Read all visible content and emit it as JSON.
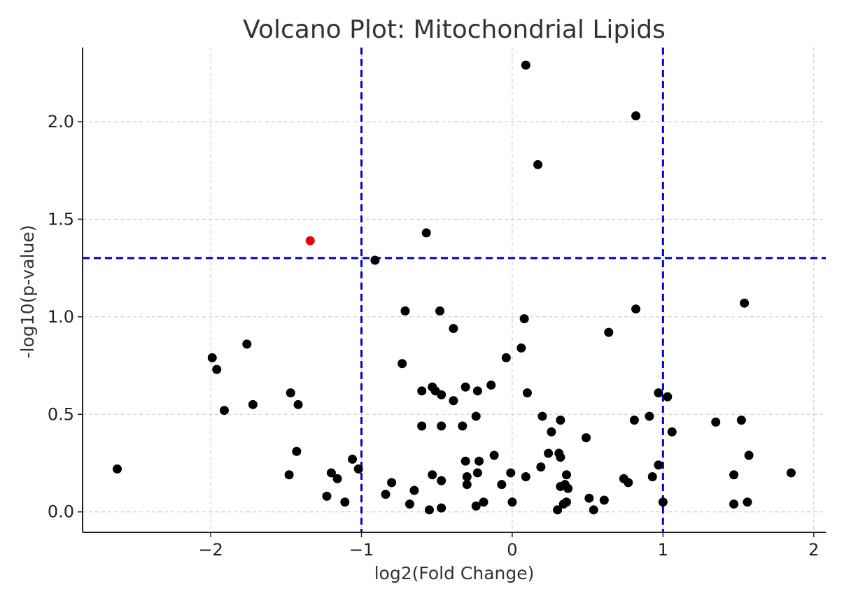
{
  "chart_data": {
    "type": "scatter",
    "title": "Volcano Plot: Mitochondrial Lipids",
    "xlabel": "log2(Fold Change)",
    "ylabel": "-log10(p-value)",
    "xlim": [
      -2.85,
      2.08
    ],
    "ylim": [
      -0.105,
      2.38
    ],
    "xticks": [
      -2,
      -1,
      0,
      1,
      2
    ],
    "xtick_labels": [
      "−2",
      "−1",
      "0",
      "1",
      "2"
    ],
    "yticks": [
      0.0,
      0.5,
      1.0,
      1.5,
      2.0
    ],
    "ytick_labels": [
      "0.0",
      "0.5",
      "1.0",
      "1.5",
      "2.0"
    ],
    "grid": true,
    "thresholds": {
      "fold_change": [
        -1,
        1
      ],
      "neg_log10_p": 1.301,
      "color": "#0000dd"
    },
    "colors": {
      "normal": "#000000",
      "highlight": "#ee0000"
    },
    "points": [
      {
        "x": -1.34,
        "y": 1.39,
        "highlight": true
      },
      {
        "x": 0.09,
        "y": 2.29
      },
      {
        "x": 0.82,
        "y": 2.03
      },
      {
        "x": 0.17,
        "y": 1.78
      },
      {
        "x": -0.57,
        "y": 1.43
      },
      {
        "x": -0.91,
        "y": 1.29
      },
      {
        "x": 1.54,
        "y": 1.07
      },
      {
        "x": -0.71,
        "y": 1.03
      },
      {
        "x": -0.48,
        "y": 1.03
      },
      {
        "x": 0.82,
        "y": 1.04
      },
      {
        "x": 0.08,
        "y": 0.99
      },
      {
        "x": -0.39,
        "y": 0.94
      },
      {
        "x": 0.64,
        "y": 0.92
      },
      {
        "x": -1.76,
        "y": 0.86
      },
      {
        "x": 0.06,
        "y": 0.84
      },
      {
        "x": -1.99,
        "y": 0.79
      },
      {
        "x": -0.04,
        "y": 0.79
      },
      {
        "x": -0.73,
        "y": 0.76
      },
      {
        "x": -1.96,
        "y": 0.73
      },
      {
        "x": -0.53,
        "y": 0.64
      },
      {
        "x": -0.31,
        "y": 0.64
      },
      {
        "x": -0.14,
        "y": 0.65
      },
      {
        "x": -0.6,
        "y": 0.62
      },
      {
        "x": -0.51,
        "y": 0.62
      },
      {
        "x": -0.23,
        "y": 0.62
      },
      {
        "x": 0.1,
        "y": 0.61
      },
      {
        "x": 0.97,
        "y": 0.61
      },
      {
        "x": -1.47,
        "y": 0.61
      },
      {
        "x": -0.47,
        "y": 0.6
      },
      {
        "x": 1.03,
        "y": 0.59
      },
      {
        "x": -0.39,
        "y": 0.57
      },
      {
        "x": -1.42,
        "y": 0.55
      },
      {
        "x": -1.72,
        "y": 0.55
      },
      {
        "x": -1.91,
        "y": 0.52
      },
      {
        "x": -0.24,
        "y": 0.49
      },
      {
        "x": 0.2,
        "y": 0.49
      },
      {
        "x": 0.91,
        "y": 0.49
      },
      {
        "x": 0.32,
        "y": 0.47
      },
      {
        "x": 0.81,
        "y": 0.47
      },
      {
        "x": 1.52,
        "y": 0.47
      },
      {
        "x": 1.35,
        "y": 0.46
      },
      {
        "x": -0.6,
        "y": 0.44
      },
      {
        "x": -0.47,
        "y": 0.44
      },
      {
        "x": -0.33,
        "y": 0.44
      },
      {
        "x": 0.26,
        "y": 0.41
      },
      {
        "x": 1.06,
        "y": 0.41
      },
      {
        "x": 0.49,
        "y": 0.38
      },
      {
        "x": -1.43,
        "y": 0.31
      },
      {
        "x": 0.24,
        "y": 0.3
      },
      {
        "x": 0.31,
        "y": 0.3
      },
      {
        "x": -0.12,
        "y": 0.29
      },
      {
        "x": 1.57,
        "y": 0.29
      },
      {
        "x": 0.32,
        "y": 0.28
      },
      {
        "x": -1.06,
        "y": 0.27
      },
      {
        "x": -0.22,
        "y": 0.26
      },
      {
        "x": -0.31,
        "y": 0.26
      },
      {
        "x": 0.97,
        "y": 0.24
      },
      {
        "x": 0.19,
        "y": 0.23
      },
      {
        "x": -1.02,
        "y": 0.22
      },
      {
        "x": -2.62,
        "y": 0.22
      },
      {
        "x": -1.2,
        "y": 0.2
      },
      {
        "x": -0.23,
        "y": 0.2
      },
      {
        "x": -0.01,
        "y": 0.2
      },
      {
        "x": 1.85,
        "y": 0.2
      },
      {
        "x": 0.36,
        "y": 0.19
      },
      {
        "x": -1.48,
        "y": 0.19
      },
      {
        "x": -0.53,
        "y": 0.19
      },
      {
        "x": 1.47,
        "y": 0.19
      },
      {
        "x": -0.3,
        "y": 0.18
      },
      {
        "x": 0.09,
        "y": 0.18
      },
      {
        "x": 0.93,
        "y": 0.18
      },
      {
        "x": -1.16,
        "y": 0.17
      },
      {
        "x": 0.74,
        "y": 0.17
      },
      {
        "x": -0.47,
        "y": 0.16
      },
      {
        "x": 0.77,
        "y": 0.15
      },
      {
        "x": -0.8,
        "y": 0.15
      },
      {
        "x": -0.3,
        "y": 0.14
      },
      {
        "x": -0.07,
        "y": 0.14
      },
      {
        "x": 0.35,
        "y": 0.14
      },
      {
        "x": 0.32,
        "y": 0.13
      },
      {
        "x": 0.37,
        "y": 0.12
      },
      {
        "x": -0.65,
        "y": 0.11
      },
      {
        "x": -0.84,
        "y": 0.09
      },
      {
        "x": -1.23,
        "y": 0.08
      },
      {
        "x": 0.51,
        "y": 0.07
      },
      {
        "x": 0.61,
        "y": 0.06
      },
      {
        "x": 0.36,
        "y": 0.05
      },
      {
        "x": 0.0,
        "y": 0.05
      },
      {
        "x": 1.0,
        "y": 0.05
      },
      {
        "x": -1.11,
        "y": 0.05
      },
      {
        "x": -0.19,
        "y": 0.05
      },
      {
        "x": 1.47,
        "y": 0.04
      },
      {
        "x": 1.56,
        "y": 0.05
      },
      {
        "x": 0.34,
        "y": 0.04
      },
      {
        "x": -0.68,
        "y": 0.04
      },
      {
        "x": -0.24,
        "y": 0.03
      },
      {
        "x": -0.47,
        "y": 0.02
      },
      {
        "x": 0.3,
        "y": 0.01
      },
      {
        "x": 0.54,
        "y": 0.01
      },
      {
        "x": -0.55,
        "y": 0.01
      }
    ]
  }
}
